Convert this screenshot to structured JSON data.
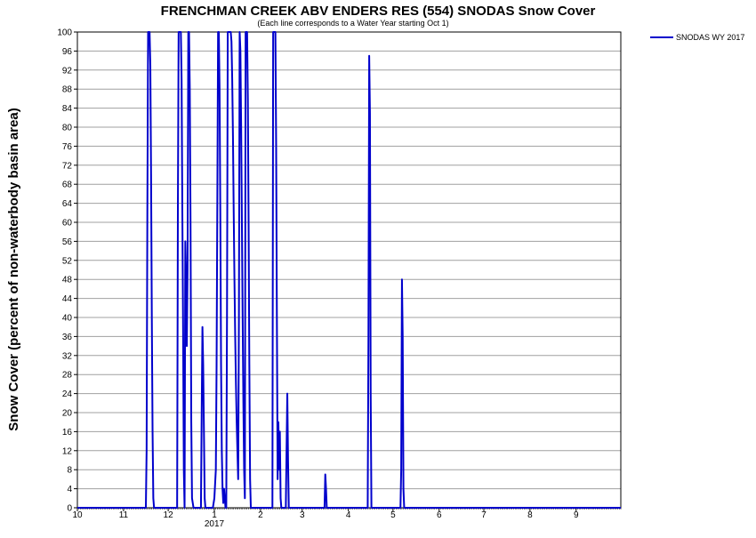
{
  "chart_data": {
    "type": "line",
    "title": "FRENCHMAN CREEK ABV ENDERS RES (554) SNODAS Snow Cover",
    "subtitle": "(Each line corresponds to a Water Year starting Oct 1)",
    "ylabel": "Snow Cover (percent of non-waterbody basin area)",
    "xlabel": "",
    "ylim": [
      0,
      100
    ],
    "y_ticks": [
      0,
      4,
      8,
      12,
      16,
      20,
      24,
      28,
      32,
      36,
      40,
      44,
      48,
      52,
      56,
      60,
      64,
      68,
      72,
      76,
      80,
      84,
      88,
      92,
      96,
      100
    ],
    "x_ticks": [
      {
        "label": "10",
        "day": 0
      },
      {
        "label": "11",
        "day": 31
      },
      {
        "label": "12",
        "day": 61
      },
      {
        "label": "1",
        "day": 92
      },
      {
        "label": "2",
        "day": 123
      },
      {
        "label": "3",
        "day": 151
      },
      {
        "label": "4",
        "day": 182
      },
      {
        "label": "5",
        "day": 212
      },
      {
        "label": "6",
        "day": 243
      },
      {
        "label": "7",
        "day": 273
      },
      {
        "label": "8",
        "day": 304
      },
      {
        "label": "9",
        "day": 335
      }
    ],
    "x_range_days": [
      0,
      365
    ],
    "year_label": {
      "text": "2017",
      "day": 92
    },
    "grid": true,
    "legend_position": "top-right",
    "series": [
      {
        "name": "SNODAS WY 2017",
        "color": "#0000cc",
        "points": [
          [
            0,
            0
          ],
          [
            46,
            0
          ],
          [
            46.5,
            12
          ],
          [
            47,
            62
          ],
          [
            47.5,
            100
          ],
          [
            48.5,
            100
          ],
          [
            49,
            93
          ],
          [
            49.5,
            70
          ],
          [
            50,
            40
          ],
          [
            50.5,
            16
          ],
          [
            51,
            2
          ],
          [
            51.5,
            0
          ],
          [
            67,
            0
          ],
          [
            67.5,
            62
          ],
          [
            68,
            100
          ],
          [
            69.5,
            100
          ],
          [
            70,
            90
          ],
          [
            70.5,
            62
          ],
          [
            71,
            38
          ],
          [
            71.5,
            8
          ],
          [
            72,
            0
          ],
          [
            72.5,
            56
          ],
          [
            73,
            48
          ],
          [
            73.5,
            34
          ],
          [
            74,
            50
          ],
          [
            74.5,
            100
          ],
          [
            75,
            100
          ],
          [
            75.5,
            88
          ],
          [
            76,
            60
          ],
          [
            76.5,
            18
          ],
          [
            77,
            2
          ],
          [
            78,
            0
          ],
          [
            83,
            0
          ],
          [
            83.5,
            20
          ],
          [
            84,
            38
          ],
          [
            84.5,
            30
          ],
          [
            85,
            16
          ],
          [
            85.5,
            2
          ],
          [
            86,
            0
          ],
          [
            91,
            0
          ],
          [
            92,
            2
          ],
          [
            93,
            8
          ],
          [
            93.5,
            30
          ],
          [
            94,
            64
          ],
          [
            94.5,
            100
          ],
          [
            95,
            100
          ],
          [
            95.5,
            88
          ],
          [
            96,
            62
          ],
          [
            96.5,
            30
          ],
          [
            97,
            12
          ],
          [
            97.5,
            4
          ],
          [
            98,
            1
          ],
          [
            98.5,
            4
          ],
          [
            99,
            2
          ],
          [
            99.5,
            0
          ],
          [
            100,
            0
          ],
          [
            100.5,
            40
          ],
          [
            101,
            100
          ],
          [
            103,
            100
          ],
          [
            103.5,
            98
          ],
          [
            104,
            90
          ],
          [
            104.5,
            78
          ],
          [
            105,
            62
          ],
          [
            105.5,
            48
          ],
          [
            106,
            36
          ],
          [
            106.5,
            26
          ],
          [
            107,
            18
          ],
          [
            107.5,
            12
          ],
          [
            108,
            6
          ],
          [
            108.5,
            40
          ],
          [
            109,
            100
          ],
          [
            109.5,
            96
          ],
          [
            110,
            80
          ],
          [
            110.5,
            60
          ],
          [
            111,
            40
          ],
          [
            111.5,
            22
          ],
          [
            112,
            8
          ],
          [
            112.5,
            2
          ],
          [
            113,
            100
          ],
          [
            114,
            100
          ],
          [
            114.5,
            86
          ],
          [
            115,
            60
          ],
          [
            115.5,
            30
          ],
          [
            116,
            6
          ],
          [
            116.5,
            0
          ],
          [
            131,
            0
          ],
          [
            131.5,
            100
          ],
          [
            133,
            100
          ],
          [
            133.5,
            76
          ],
          [
            134,
            40
          ],
          [
            134.5,
            6
          ],
          [
            135,
            18
          ],
          [
            135.5,
            8
          ],
          [
            136,
            16
          ],
          [
            136.5,
            2
          ],
          [
            137,
            0
          ],
          [
            140,
            0
          ],
          [
            140.5,
            12
          ],
          [
            141,
            24
          ],
          [
            141.5,
            10
          ],
          [
            142,
            0
          ],
          [
            166,
            0
          ],
          [
            166.5,
            7
          ],
          [
            167,
            4
          ],
          [
            167.5,
            0
          ],
          [
            195,
            0
          ],
          [
            195.5,
            36
          ],
          [
            196,
            95
          ],
          [
            196.5,
            83
          ],
          [
            197,
            24
          ],
          [
            197.5,
            0
          ],
          [
            217,
            0
          ],
          [
            217.5,
            8
          ],
          [
            218,
            48
          ],
          [
            218.5,
            36
          ],
          [
            219,
            4
          ],
          [
            219.5,
            0
          ],
          [
            365,
            0
          ]
        ]
      }
    ]
  }
}
